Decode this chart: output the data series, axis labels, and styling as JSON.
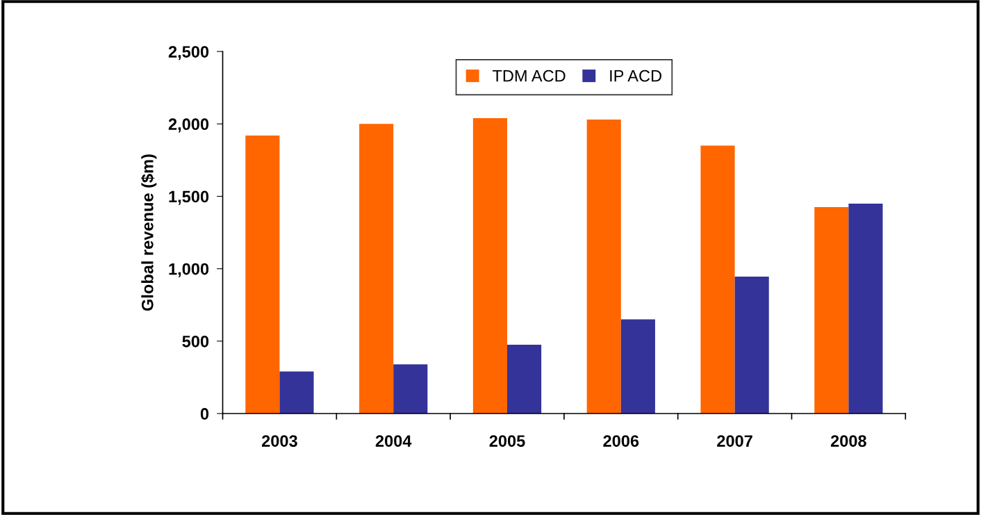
{
  "chart_data": {
    "type": "bar",
    "ylabel": "Global revenue ($m)",
    "categories": [
      "2003",
      "2004",
      "2005",
      "2006",
      "2007",
      "2008"
    ],
    "series": [
      {
        "name": "TDM ACD",
        "color": "#ff6600",
        "values": [
          1920,
          2000,
          2040,
          2030,
          1850,
          1425
        ]
      },
      {
        "name": "IP ACD",
        "color": "#333399",
        "values": [
          290,
          340,
          475,
          650,
          945,
          1450
        ]
      }
    ],
    "ylim": [
      0,
      2500
    ],
    "yticks": [
      0,
      {
        "value": 500,
        "label": "500"
      },
      {
        "value": 1000,
        "label": "1,000"
      },
      {
        "value": 1500,
        "label": "1,500"
      },
      {
        "value": 2000,
        "label": "2,000"
      },
      {
        "value": 2500,
        "label": "2,500"
      }
    ],
    "grid": false,
    "legend": "top"
  }
}
